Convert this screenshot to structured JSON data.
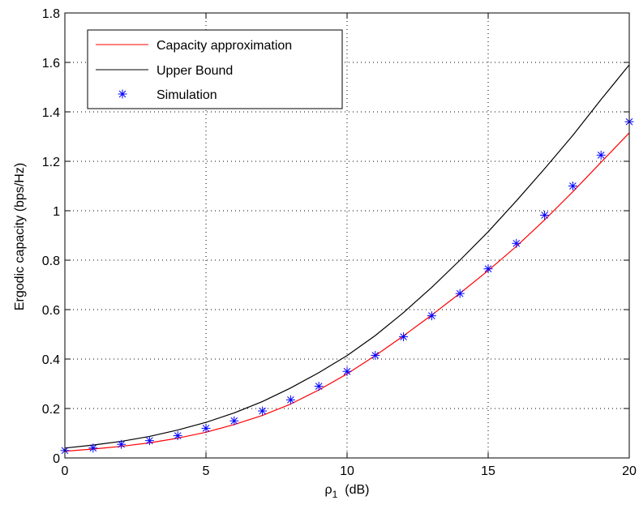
{
  "chart_data": {
    "type": "line",
    "title": "",
    "xlabel": "ρ",
    "xlabel_subscript": "1",
    "xlabel_unit": "(dB)",
    "ylabel": "Ergodic capacity (bps/Hz)",
    "xlim": [
      0,
      20
    ],
    "ylim": [
      0,
      1.8
    ],
    "xticks": [
      0,
      5,
      10,
      15,
      20
    ],
    "yticks": [
      0,
      0.2,
      0.4,
      0.6,
      0.8,
      1,
      1.2,
      1.4,
      1.6,
      1.8
    ],
    "xtick_labels": [
      "0",
      "5",
      "10",
      "15",
      "20"
    ],
    "ytick_labels": [
      "0",
      "0.2",
      "0.4",
      "0.6",
      "0.8",
      "1",
      "1.2",
      "1.4",
      "1.6",
      "1.8"
    ],
    "grid": true,
    "legend_position": "top-left",
    "series": [
      {
        "name": "Capacity approximation",
        "style": "line",
        "color": "#ff0000",
        "x": [
          0,
          1,
          2,
          3,
          4,
          5,
          6,
          7,
          8,
          9,
          10,
          11,
          12,
          13,
          14,
          15,
          16,
          17,
          18,
          19,
          20
        ],
        "y": [
          0.027,
          0.036,
          0.047,
          0.061,
          0.08,
          0.104,
          0.135,
          0.172,
          0.218,
          0.275,
          0.34,
          0.414,
          0.494,
          0.578,
          0.666,
          0.758,
          0.856,
          0.963,
          1.077,
          1.196,
          1.315
        ]
      },
      {
        "name": "Upper Bound",
        "style": "line",
        "color": "#000000",
        "x": [
          0,
          1,
          2,
          3,
          4,
          5,
          6,
          7,
          8,
          9,
          10,
          11,
          12,
          13,
          14,
          15,
          16,
          17,
          18,
          19,
          20
        ],
        "y": [
          0.04,
          0.052,
          0.067,
          0.087,
          0.113,
          0.144,
          0.182,
          0.228,
          0.283,
          0.345,
          0.414,
          0.495,
          0.588,
          0.69,
          0.8,
          0.915,
          1.04,
          1.17,
          1.305,
          1.45,
          1.59
        ]
      },
      {
        "name": "Simulation",
        "style": "marker",
        "marker": "*",
        "color": "#0000ff",
        "x": [
          0,
          1,
          2,
          3,
          4,
          5,
          6,
          7,
          8,
          9,
          10,
          11,
          12,
          13,
          14,
          15,
          16,
          17,
          18,
          19,
          20
        ],
        "y": [
          0.03,
          0.04,
          0.055,
          0.07,
          0.09,
          0.12,
          0.15,
          0.19,
          0.235,
          0.29,
          0.35,
          0.415,
          0.49,
          0.575,
          0.665,
          0.765,
          0.868,
          0.982,
          1.1,
          1.225,
          1.36
        ]
      }
    ]
  }
}
